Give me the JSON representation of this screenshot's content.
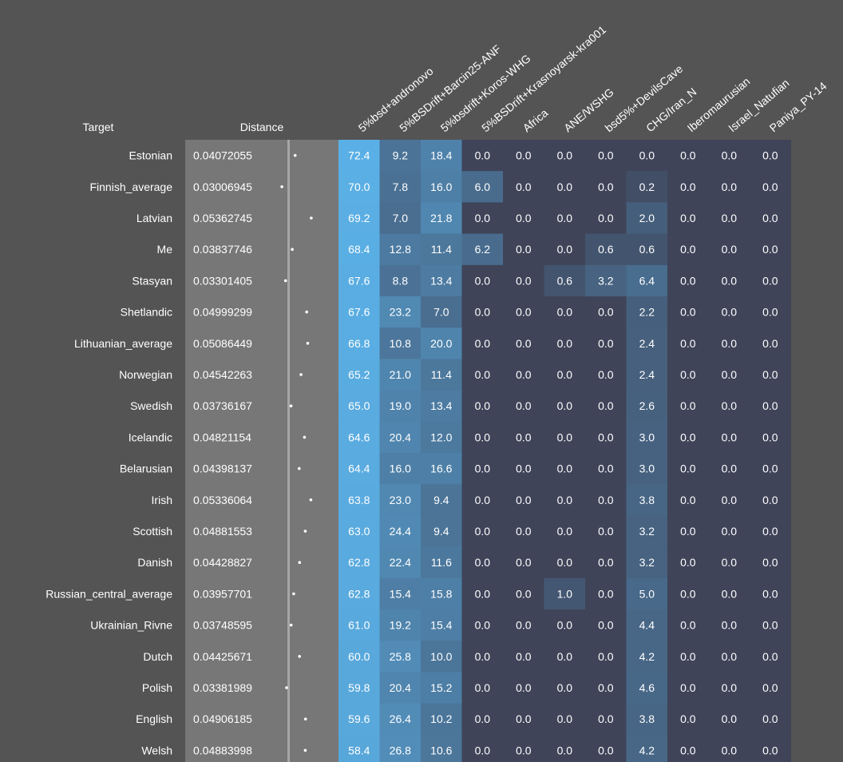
{
  "headers": {
    "target": "Target",
    "distance": "Distance"
  },
  "colors": {
    "background": "#545454",
    "distance_panel": "#777777",
    "distance_divider": "#a6a6a6",
    "cell_low": "#3f4459",
    "cell_high": "#5ab0e6"
  },
  "chart_data": {
    "type": "heatmap",
    "columns": [
      "5%bsd+andronovo",
      "5%BSDrift+Barcin25-ANF",
      "5%bsdrift+Koros-WHG",
      "5%BSDrift+Krasnoyarsk-kra001",
      "Africa",
      "ANE/WSHG",
      "bsd5%+DevilsCave",
      "CHG/Iran_N",
      "Iberomaurusian",
      "Israel_Natufian",
      "Paniya_PY-14"
    ],
    "rows": [
      {
        "target": "Estonian",
        "distance": "0.04072055",
        "values": [
          "72.4",
          "9.2",
          "18.4",
          "0.0",
          "0.0",
          "0.0",
          "0.0",
          "0.0",
          "0.0",
          "0.0",
          "0.0"
        ]
      },
      {
        "target": "Finnish_average",
        "distance": "0.03006945",
        "values": [
          "70.0",
          "7.8",
          "16.0",
          "6.0",
          "0.0",
          "0.0",
          "0.0",
          "0.2",
          "0.0",
          "0.0",
          "0.0"
        ]
      },
      {
        "target": "Latvian",
        "distance": "0.05362745",
        "values": [
          "69.2",
          "7.0",
          "21.8",
          "0.0",
          "0.0",
          "0.0",
          "0.0",
          "2.0",
          "0.0",
          "0.0",
          "0.0"
        ]
      },
      {
        "target": "Me",
        "distance": "0.03837746",
        "values": [
          "68.4",
          "12.8",
          "11.4",
          "6.2",
          "0.0",
          "0.0",
          "0.6",
          "0.6",
          "0.0",
          "0.0",
          "0.0"
        ]
      },
      {
        "target": "Stasyan",
        "distance": "0.03301405",
        "values": [
          "67.6",
          "8.8",
          "13.4",
          "0.0",
          "0.0",
          "0.6",
          "3.2",
          "6.4",
          "0.0",
          "0.0",
          "0.0"
        ]
      },
      {
        "target": "Shetlandic",
        "distance": "0.04999299",
        "values": [
          "67.6",
          "23.2",
          "7.0",
          "0.0",
          "0.0",
          "0.0",
          "0.0",
          "2.2",
          "0.0",
          "0.0",
          "0.0"
        ]
      },
      {
        "target": "Lithuanian_average",
        "distance": "0.05086449",
        "values": [
          "66.8",
          "10.8",
          "20.0",
          "0.0",
          "0.0",
          "0.0",
          "0.0",
          "2.4",
          "0.0",
          "0.0",
          "0.0"
        ]
      },
      {
        "target": "Norwegian",
        "distance": "0.04542263",
        "values": [
          "65.2",
          "21.0",
          "11.4",
          "0.0",
          "0.0",
          "0.0",
          "0.0",
          "2.4",
          "0.0",
          "0.0",
          "0.0"
        ]
      },
      {
        "target": "Swedish",
        "distance": "0.03736167",
        "values": [
          "65.0",
          "19.0",
          "13.4",
          "0.0",
          "0.0",
          "0.0",
          "0.0",
          "2.6",
          "0.0",
          "0.0",
          "0.0"
        ]
      },
      {
        "target": "Icelandic",
        "distance": "0.04821154",
        "values": [
          "64.6",
          "20.4",
          "12.0",
          "0.0",
          "0.0",
          "0.0",
          "0.0",
          "3.0",
          "0.0",
          "0.0",
          "0.0"
        ]
      },
      {
        "target": "Belarusian",
        "distance": "0.04398137",
        "values": [
          "64.4",
          "16.0",
          "16.6",
          "0.0",
          "0.0",
          "0.0",
          "0.0",
          "3.0",
          "0.0",
          "0.0",
          "0.0"
        ]
      },
      {
        "target": "Irish",
        "distance": "0.05336064",
        "values": [
          "63.8",
          "23.0",
          "9.4",
          "0.0",
          "0.0",
          "0.0",
          "0.0",
          "3.8",
          "0.0",
          "0.0",
          "0.0"
        ]
      },
      {
        "target": "Scottish",
        "distance": "0.04881553",
        "values": [
          "63.0",
          "24.4",
          "9.4",
          "0.0",
          "0.0",
          "0.0",
          "0.0",
          "3.2",
          "0.0",
          "0.0",
          "0.0"
        ]
      },
      {
        "target": "Danish",
        "distance": "0.04428827",
        "values": [
          "62.8",
          "22.4",
          "11.6",
          "0.0",
          "0.0",
          "0.0",
          "0.0",
          "3.2",
          "0.0",
          "0.0",
          "0.0"
        ]
      },
      {
        "target": "Russian_central_average",
        "distance": "0.03957701",
        "values": [
          "62.8",
          "15.4",
          "15.8",
          "0.0",
          "0.0",
          "1.0",
          "0.0",
          "5.0",
          "0.0",
          "0.0",
          "0.0"
        ]
      },
      {
        "target": "Ukrainian_Rivne",
        "distance": "0.03748595",
        "values": [
          "61.0",
          "19.2",
          "15.4",
          "0.0",
          "0.0",
          "0.0",
          "0.0",
          "4.4",
          "0.0",
          "0.0",
          "0.0"
        ]
      },
      {
        "target": "Dutch",
        "distance": "0.04425671",
        "values": [
          "60.0",
          "25.8",
          "10.0",
          "0.0",
          "0.0",
          "0.0",
          "0.0",
          "4.2",
          "0.0",
          "0.0",
          "0.0"
        ]
      },
      {
        "target": "Polish",
        "distance": "0.03381989",
        "values": [
          "59.8",
          "20.4",
          "15.2",
          "0.0",
          "0.0",
          "0.0",
          "0.0",
          "4.6",
          "0.0",
          "0.0",
          "0.0"
        ]
      },
      {
        "target": "English",
        "distance": "0.04906185",
        "values": [
          "59.6",
          "26.4",
          "10.2",
          "0.0",
          "0.0",
          "0.0",
          "0.0",
          "3.8",
          "0.0",
          "0.0",
          "0.0"
        ]
      },
      {
        "target": "Welsh",
        "distance": "0.04883998",
        "values": [
          "58.4",
          "26.8",
          "10.6",
          "0.0",
          "0.0",
          "0.0",
          "0.0",
          "4.2",
          "0.0",
          "0.0",
          "0.0"
        ]
      }
    ]
  }
}
